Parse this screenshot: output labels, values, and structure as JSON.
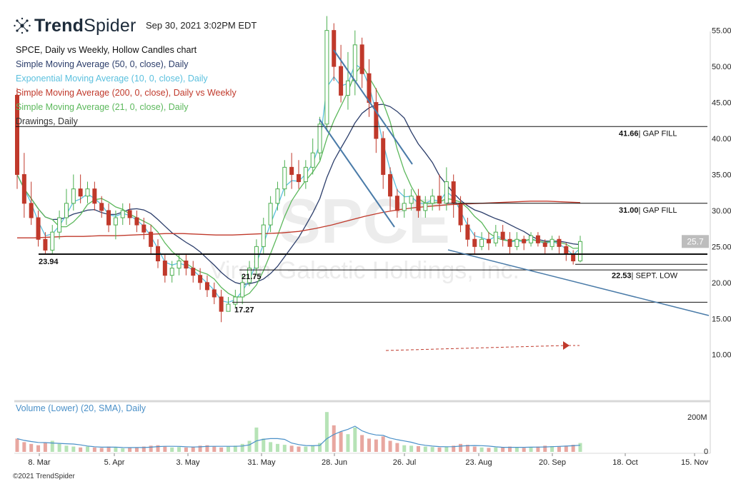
{
  "header": {
    "brand_bold": "Trend",
    "brand_light": "Spider",
    "timestamp": "Sep 30, 2021 3:02PM EDT"
  },
  "legend": {
    "title": "SPCE, Daily vs Weekly, Hollow Candles chart",
    "items": [
      {
        "label": "Simple Moving Average (50, 0, close), Daily",
        "color": "#2c3e6b"
      },
      {
        "label": "Exponential Moving Average (10, 0, close), Daily",
        "color": "#5bc0de"
      },
      {
        "label": "Simple Moving Average (200, 0, close), Daily vs Weekly",
        "color": "#c0392b"
      },
      {
        "label": "Simple Moving Average (21, 0, close), Daily",
        "color": "#5cb85c"
      },
      {
        "label": "Drawings, Daily",
        "color": "#333333"
      }
    ]
  },
  "volume_label": "Volume (Lower) (20, SMA), Daily",
  "footer": "©2021 TrendSpider",
  "watermark": {
    "ticker": "SPCE",
    "name": "Virgin Galactic Holdings, Inc."
  },
  "chart_data": {
    "type": "candlestick",
    "symbol": "SPCE",
    "ylim": [
      8,
      58
    ],
    "y_ticks": [
      "10.00",
      "15.00",
      "20.00",
      "25.00",
      "30.00",
      "35.00",
      "40.00",
      "45.00",
      "50.00",
      "55.00"
    ],
    "x_ticks": [
      "8. Mar",
      "5. Apr",
      "3. May",
      "31. May",
      "28. Jun",
      "26. Jul",
      "23. Aug",
      "20. Sep",
      "18. Oct",
      "15. Nov"
    ],
    "last_price": "25.7",
    "volume_ticks": [
      "200M",
      "0"
    ],
    "levels": [
      {
        "value": 41.66,
        "label_value": "41.66",
        "label_text": "| GAP FILL"
      },
      {
        "value": 31.0,
        "label_value": "31.00",
        "label_text": "| GAP FILL"
      },
      {
        "value": 23.94,
        "label_value": "23.94",
        "label_text": ""
      },
      {
        "value": 21.75,
        "label_value": "21.75",
        "label_text": ""
      },
      {
        "value": 22.53,
        "label_value": "22.53",
        "label_text": "| SEPT. LOW"
      },
      {
        "value": 17.27,
        "label_value": "17.27",
        "label_text": ""
      }
    ],
    "candles_approx": [
      [
        46,
        35,
        47,
        33
      ],
      [
        35,
        31,
        38,
        29
      ],
      [
        31,
        29,
        34,
        28
      ],
      [
        29,
        26,
        30,
        25
      ],
      [
        26,
        24.5,
        27,
        24
      ],
      [
        24.5,
        27,
        28,
        24
      ],
      [
        27,
        29,
        30,
        26
      ],
      [
        29,
        31,
        33,
        28
      ],
      [
        31,
        33,
        35,
        30
      ],
      [
        33,
        32,
        35,
        31
      ],
      [
        32,
        33,
        34,
        31
      ],
      [
        33,
        31,
        34,
        30
      ],
      [
        31,
        30,
        32,
        29
      ],
      [
        30,
        28,
        31,
        27
      ],
      [
        28,
        29,
        30,
        26
      ],
      [
        29,
        30,
        31,
        28
      ],
      [
        30,
        29,
        31,
        28
      ],
      [
        29,
        28,
        30,
        27
      ],
      [
        28,
        27,
        29,
        26
      ],
      [
        27,
        25,
        28,
        24
      ],
      [
        25,
        23,
        26,
        22
      ],
      [
        23,
        21,
        24,
        20
      ],
      [
        21,
        22,
        23,
        20
      ],
      [
        22,
        23,
        24,
        21
      ],
      [
        23,
        22,
        24,
        21
      ],
      [
        22,
        21,
        23,
        20
      ],
      [
        21,
        20,
        22,
        19
      ],
      [
        20,
        19,
        21,
        18
      ],
      [
        19,
        18,
        20,
        17
      ],
      [
        18,
        16,
        19,
        14.5
      ],
      [
        16,
        17,
        18,
        16
      ],
      [
        17,
        18,
        19,
        16.5
      ],
      [
        18,
        20,
        21,
        17
      ],
      [
        20,
        22,
        23,
        19.5
      ],
      [
        22,
        25,
        26,
        21
      ],
      [
        25,
        28,
        29,
        24
      ],
      [
        28,
        31,
        32,
        27
      ],
      [
        31,
        33,
        34,
        30
      ],
      [
        33,
        36,
        37,
        32
      ],
      [
        36,
        35,
        38,
        33
      ],
      [
        35,
        34,
        37,
        33
      ],
      [
        34,
        36,
        37,
        33
      ],
      [
        36,
        38,
        40,
        35
      ],
      [
        38,
        42,
        43,
        37
      ],
      [
        42,
        55,
        57,
        41
      ],
      [
        55,
        50,
        56,
        48
      ],
      [
        50,
        46,
        53,
        45
      ],
      [
        46,
        48,
        52,
        44
      ],
      [
        48,
        53,
        55,
        46
      ],
      [
        53,
        49,
        54,
        47
      ],
      [
        49,
        45,
        51,
        43
      ],
      [
        45,
        40,
        47,
        38
      ],
      [
        40,
        35,
        41,
        33
      ],
      [
        35,
        32,
        36,
        30
      ],
      [
        32,
        30,
        33,
        29
      ],
      [
        30,
        31,
        33,
        29
      ],
      [
        31,
        32,
        33,
        30
      ],
      [
        32,
        30,
        33,
        29
      ],
      [
        30,
        31,
        32,
        29
      ],
      [
        31,
        32,
        33,
        30
      ],
      [
        32,
        31,
        35,
        30
      ],
      [
        31,
        34,
        36,
        30
      ],
      [
        34,
        31,
        35,
        29
      ],
      [
        31,
        28,
        32,
        27
      ],
      [
        28,
        26,
        29,
        25
      ],
      [
        26,
        25,
        27,
        24
      ],
      [
        25,
        26,
        27,
        24.5
      ],
      [
        26,
        25.5,
        27,
        24.5
      ],
      [
        25.5,
        27,
        28,
        25
      ],
      [
        27,
        26,
        28,
        25
      ],
      [
        26,
        25,
        27,
        24
      ],
      [
        25,
        26,
        27,
        24.5
      ],
      [
        26,
        25.5,
        26.5,
        24.5
      ],
      [
        25.5,
        26.5,
        27,
        25
      ],
      [
        26.5,
        25.5,
        27,
        25
      ],
      [
        25.5,
        25,
        26,
        24
      ],
      [
        25,
        26,
        26.5,
        24.5
      ],
      [
        26,
        25,
        26.5,
        24
      ],
      [
        25,
        24,
        25.5,
        23
      ],
      [
        24,
        23,
        24.5,
        22.5
      ],
      [
        23,
        25.7,
        26.5,
        22.8
      ]
    ],
    "volume_approx": [
      30,
      22,
      18,
      15,
      20,
      25,
      18,
      14,
      12,
      10,
      12,
      10,
      9,
      12,
      10,
      8,
      9,
      10,
      12,
      14,
      15,
      12,
      10,
      11,
      10,
      12,
      14,
      15,
      12,
      10,
      12,
      14,
      18,
      25,
      55,
      30,
      22,
      18,
      16,
      14,
      12,
      12,
      15,
      20,
      90,
      60,
      45,
      40,
      55,
      38,
      30,
      28,
      35,
      25,
      20,
      15,
      14,
      13,
      12,
      11,
      10,
      12,
      14,
      18,
      16,
      12,
      10,
      9,
      10,
      11,
      12,
      10,
      9,
      11,
      12,
      14,
      13,
      12,
      14,
      16,
      20
    ]
  }
}
